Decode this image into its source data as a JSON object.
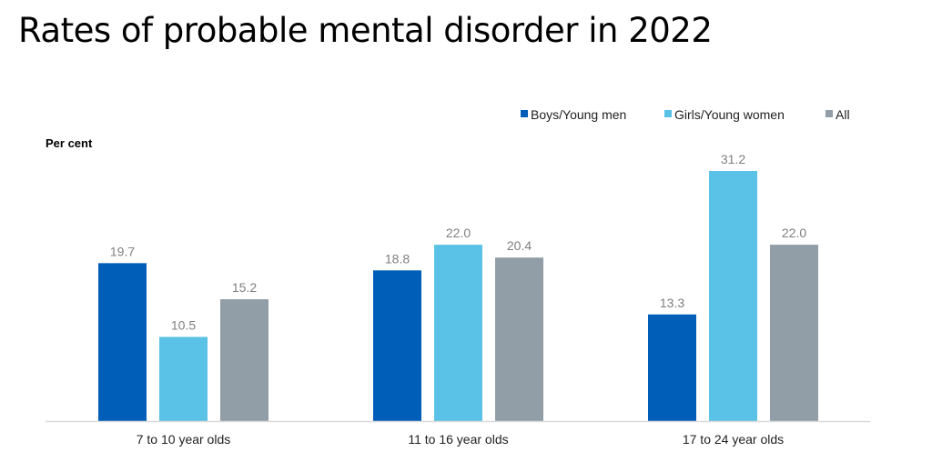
{
  "chart_data": {
    "type": "bar",
    "title": "Rates of probable mental disorder in 2022",
    "ylabel": "Per cent",
    "xlabel": "",
    "categories": [
      "7 to 10 year olds",
      "11 to 16 year olds",
      "17 to 24 year olds"
    ],
    "series": [
      {
        "name": "Boys/Young men",
        "values": [
          19.7,
          18.8,
          13.3
        ],
        "color": "#005EB8"
      },
      {
        "name": "Girls/Young women",
        "values": [
          10.5,
          22.0,
          31.2
        ],
        "color": "#5BC2E7"
      },
      {
        "name": "All",
        "values": [
          15.2,
          20.4,
          22.0
        ],
        "color": "#919EA7"
      }
    ],
    "ylim": [
      0,
      31.2
    ],
    "grid": false,
    "legend_position": "top-right",
    "data_labels": true
  }
}
